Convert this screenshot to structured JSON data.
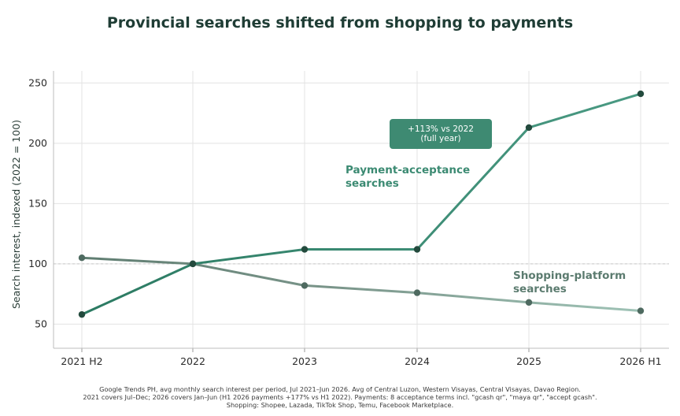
{
  "title": "Provincial searches shifted from shopping to payments",
  "colors": {
    "payments": "#3d8b74",
    "payments_dark": "#2b7a62",
    "payments_marker": "#234a3d",
    "shopping": "#6e8c80",
    "shopping_light": "#9fc3b6",
    "shopping_marker": "#4e6a60",
    "callout_bg": "#3e8a72",
    "grid": "#e3e3e3",
    "title": "#1f3d35"
  },
  "chart_data": {
    "type": "line",
    "title": "Provincial searches shifted from shopping to payments",
    "categories": [
      "2021 H2",
      "2022",
      "2023",
      "2024",
      "2025",
      "2026 H1"
    ],
    "ylabel": "Search interest, indexed (2022 = 100)",
    "xlabel": "",
    "ylim": [
      30,
      260
    ],
    "yticks": [
      50,
      100,
      150,
      200,
      250
    ],
    "grid": true,
    "reference_line": 100,
    "series": [
      {
        "key": "payments",
        "name": "Payment-acceptance searches",
        "label_lines": [
          "Payment-acceptance",
          "searches"
        ],
        "values": [
          58,
          100,
          112,
          112,
          213,
          241
        ]
      },
      {
        "key": "shopping",
        "name": "Shopping-platform searches",
        "label_lines": [
          "Shopping-platform",
          "searches"
        ],
        "values": [
          105,
          100,
          82,
          76,
          68,
          61
        ]
      }
    ],
    "annotations": [
      {
        "lines": [
          "+113% vs 2022",
          "(full year)"
        ]
      }
    ]
  },
  "source_note": [
    "Google Trends PH, avg monthly search interest per period, Jul 2021–Jun 2026. Avg of Central Luzon, Western Visayas, Central Visayas, Davao Region.",
    "2021 covers Jul–Dec; 2026 covers Jan–Jun (H1 2026 payments +177% vs H1 2022). Payments: 8 acceptance terms incl. \"gcash qr\", \"maya qr\", \"accept gcash\".",
    "Shopping: Shopee, Lazada, TikTok Shop, Temu, Facebook Marketplace."
  ]
}
